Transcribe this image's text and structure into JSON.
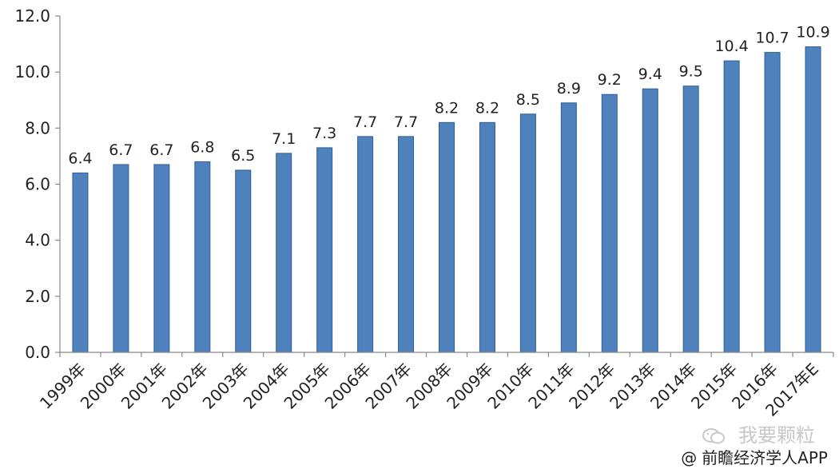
{
  "chart_data": {
    "type": "bar",
    "categories": [
      "1999年",
      "2000年",
      "2001年",
      "2002年",
      "2003年",
      "2004年",
      "2005年",
      "2006年",
      "2007年",
      "2008年",
      "2009年",
      "2010年",
      "2011年",
      "2012年",
      "2013年",
      "2014年",
      "2015年",
      "2016年",
      "2017年E"
    ],
    "values": [
      6.4,
      6.7,
      6.7,
      6.8,
      6.5,
      7.1,
      7.3,
      7.7,
      7.7,
      8.2,
      8.2,
      8.5,
      8.9,
      9.2,
      9.4,
      9.5,
      10.4,
      10.7,
      10.9
    ],
    "data_labels": [
      "6.4",
      "6.7",
      "6.7",
      "6.8",
      "6.5",
      "7.1",
      "7.3",
      "7.7",
      "7.7",
      "8.2",
      "8.2",
      "8.5",
      "8.9",
      "9.2",
      "9.4",
      "9.5",
      "10.4",
      "10.7",
      "10.9"
    ],
    "ylim": [
      0,
      12
    ],
    "yticks": [
      "0.0",
      "2.0",
      "4.0",
      "6.0",
      "8.0",
      "10.0",
      "12.0"
    ],
    "grid": false,
    "bar_color": "#4f81bd",
    "bar_edge_color": "#2e5f94",
    "title": "",
    "xlabel": "",
    "ylabel": ""
  },
  "watermark": {
    "source": "前瞻经济学人APP",
    "at_symbol": "@",
    "stamp_text": "我要颗粒",
    "icon": "wechat-icon"
  }
}
